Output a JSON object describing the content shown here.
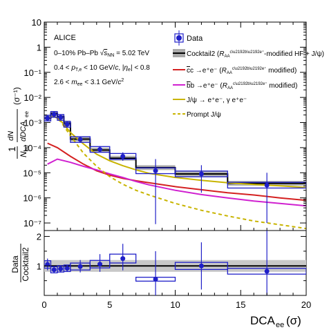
{
  "chart_data": [
    {
      "type": "line",
      "panel": "main",
      "experiment": "ALICE",
      "annotations": [
        "0–10% Pb–Pb √s_NN = 5.02 TeV",
        "0.4 < p_T,e < 10 GeV/c, |η_e| < 0.8",
        "2.6 < m_ee < 3.1 GeV/c²"
      ],
      "xlabel": "DCA_ee (σ)",
      "ylabel": "1/N_ev dN/dDCA_ee (σ⁻¹)",
      "xlim": [
        0,
        20
      ],
      "ylim": [
        5e-08,
        10
      ],
      "yscale": "log",
      "xticks": [
        "0",
        "5",
        "10",
        "15",
        "20"
      ],
      "yticks": [
        "10⁻⁷",
        "10⁻⁶",
        "10⁻⁵",
        "10⁻⁴",
        "10⁻³",
        "10⁻²",
        "10⁻¹",
        "1",
        "10"
      ],
      "legend_position": "top-right",
      "data": {
        "name": "Data",
        "color": "#1f1fc8",
        "points": [
          {
            "x": 0.25,
            "y": 0.0015,
            "xlo": 0,
            "xhi": 0.5,
            "ylo": 0.0012,
            "yhi": 0.0019
          },
          {
            "x": 0.75,
            "y": 0.0021,
            "xlo": 0.5,
            "xhi": 1.0,
            "ylo": 0.0017,
            "yhi": 0.0026
          },
          {
            "x": 1.25,
            "y": 0.0016,
            "xlo": 1.0,
            "xhi": 1.5,
            "ylo": 0.0013,
            "yhi": 0.002
          },
          {
            "x": 1.75,
            "y": 0.00085,
            "xlo": 1.5,
            "xhi": 2.0,
            "ylo": 0.0007,
            "yhi": 0.00105
          },
          {
            "x": 2.75,
            "y": 0.00021,
            "xlo": 2.0,
            "xhi": 3.5,
            "ylo": 0.00017,
            "yhi": 0.00026
          },
          {
            "x": 4.25,
            "y": 8.5e-05,
            "xlo": 3.5,
            "xhi": 5.0,
            "ylo": 6.5e-05,
            "yhi": 0.000115
          },
          {
            "x": 6.0,
            "y": 4.5e-05,
            "xlo": 5.0,
            "xhi": 7.0,
            "ylo": 3e-05,
            "yhi": 6.5e-05
          },
          {
            "x": 8.5,
            "y": 1.2e-05,
            "xlo": 7.0,
            "xhi": 10.0,
            "ylo": 9e-08,
            "yhi": 3.5e-05
          },
          {
            "x": 12.0,
            "y": 9e-06,
            "xlo": 10.0,
            "xhi": 14.0,
            "ylo": 1.6e-06,
            "yhi": 2e-05
          },
          {
            "x": 17.0,
            "y": 3.2e-06,
            "xlo": 14.0,
            "xhi": 20.0,
            "ylo": 1e-07,
            "yhi": 1e-05
          }
        ]
      },
      "series": [
        {
          "name": "Cocktail2 (R_AA^{c→b→e⁺}-modified HF + J/ψ)",
          "style": "band",
          "color": "#000000",
          "band_color": "#aaaaaa",
          "bins": [
            {
              "xlo": 0,
              "xhi": 0.5,
              "y": 0.0015
            },
            {
              "xlo": 0.5,
              "xhi": 1.0,
              "y": 0.0023
            },
            {
              "xlo": 1.0,
              "xhi": 1.5,
              "y": 0.0017
            },
            {
              "xlo": 1.5,
              "xhi": 2.0,
              "y": 0.00095
            },
            {
              "xlo": 2.0,
              "xhi": 3.5,
              "y": 0.00022
            },
            {
              "xlo": 3.5,
              "xhi": 5.0,
              "y": 8e-05
            },
            {
              "xlo": 5.0,
              "xhi": 7.0,
              "y": 3.8e-05
            },
            {
              "xlo": 7.0,
              "xhi": 10.0,
              "y": 1.6e-05
            },
            {
              "xlo": 10.0,
              "xhi": 14.0,
              "y": 9e-06
            },
            {
              "xlo": 14.0,
              "xhi": 20.0,
              "y": 3.8e-06
            }
          ]
        },
        {
          "name": "c̅c →e⁺e⁻ (R_AA^{c→b→e⁺} modified)",
          "style": "solid",
          "color": "#d42020",
          "x": [
            0.25,
            1.0,
            2.0,
            3.0,
            4.0,
            5.0,
            6.0,
            7.0,
            8.0,
            10.0,
            12.0,
            14.0,
            16.0,
            18.0,
            20.0
          ],
          "y": [
            0.00015,
            0.0001,
            4.5e-05,
            2.2e-05,
            1.2e-05,
            8e-06,
            6e-06,
            4.8e-06,
            4e-06,
            2.8e-06,
            2.1e-06,
            1.6e-06,
            1.3e-06,
            1e-06,
            8e-07
          ]
        },
        {
          "name": "b̅b →e⁺e⁻ (R_AA^{c→b→e⁺} modified)",
          "style": "solid",
          "color": "#d020d0",
          "x": [
            0.25,
            1.0,
            2.0,
            3.0,
            4.0,
            5.0,
            6.0,
            7.0,
            8.0,
            10.0,
            12.0,
            14.0,
            16.0,
            18.0,
            20.0
          ],
          "y": [
            2.2e-05,
            3.5e-05,
            2.6e-05,
            1.8e-05,
            1.3e-05,
            9e-06,
            6.5e-06,
            4.5e-06,
            3.3e-06,
            2e-06,
            1.35e-06,
            1e-06,
            7.5e-07,
            6e-07,
            4.8e-07
          ]
        },
        {
          "name": "J/ψ → e⁺e⁻, γ e⁺e⁻",
          "style": "solid",
          "color": "#c8b400",
          "x": [
            0.25,
            0.75,
            1.25,
            2.0,
            3.0,
            4.0,
            5.0,
            6.0,
            7.0,
            8.0,
            10.0,
            12.0,
            14.0,
            16.0,
            18.0,
            20.0
          ],
          "y": [
            0.0015,
            0.0018,
            0.0012,
            0.0004,
            0.00014,
            5.5e-05,
            3e-05,
            1.9e-05,
            1.3e-05,
            9.5e-06,
            6.5e-06,
            5e-06,
            4e-06,
            3.4e-06,
            3e-06,
            2.6e-06
          ]
        },
        {
          "name": "Prompt J/ψ",
          "style": "dashed",
          "color": "#c8b400",
          "x": [
            0.25,
            0.75,
            1.25,
            2.0,
            3.0,
            4.0,
            5.0,
            6.0,
            7.0,
            8.0,
            10.0,
            12.0,
            14.0,
            16.0,
            18.0,
            20.0
          ],
          "y": [
            0.0015,
            0.0018,
            0.0011,
            0.0003,
            6e-05,
            1.8e-05,
            7e-06,
            3.5e-06,
            2e-06,
            1.3e-06,
            6e-07,
            3.2e-07,
            1.9e-07,
            1.2e-07,
            8.5e-08,
            6e-08
          ]
        }
      ]
    },
    {
      "type": "scatter",
      "panel": "ratio",
      "ylabel": "Data / Cocktail2",
      "xlabel": "DCA_ee (σ)",
      "xlim": [
        0,
        20
      ],
      "ylim": [
        0,
        2.2
      ],
      "xticks": [
        "0",
        "5",
        "10",
        "15",
        "20"
      ],
      "yticks": [
        "1",
        "2"
      ],
      "reference_line": 1,
      "reference_band": [
        0.8,
        1.2
      ],
      "points": [
        {
          "x": 0.25,
          "y": 1.05,
          "xlo": 0,
          "xhi": 0.5,
          "ylo": 0.85,
          "yhi": 1.25
        },
        {
          "x": 0.75,
          "y": 0.87,
          "xlo": 0.5,
          "xhi": 1.0,
          "ylo": 0.75,
          "yhi": 0.99
        },
        {
          "x": 1.25,
          "y": 0.9,
          "xlo": 1.0,
          "xhi": 1.5,
          "ylo": 0.78,
          "yhi": 1.02
        },
        {
          "x": 1.75,
          "y": 0.92,
          "xlo": 1.5,
          "xhi": 2.0,
          "ylo": 0.8,
          "yhi": 1.04
        },
        {
          "x": 2.75,
          "y": 0.98,
          "xlo": 2.0,
          "xhi": 3.5,
          "ylo": 0.78,
          "yhi": 1.2
        },
        {
          "x": 4.25,
          "y": 1.06,
          "xlo": 3.5,
          "xhi": 5.0,
          "ylo": 0.8,
          "yhi": 1.4
        },
        {
          "x": 6.0,
          "y": 1.25,
          "xlo": 5.0,
          "xhi": 7.0,
          "ylo": 0.85,
          "yhi": 1.75
        },
        {
          "x": 8.5,
          "y": 0.55,
          "xlo": 7.0,
          "xhi": 10.0,
          "ylo": 0.0,
          "yhi": 1.5
        },
        {
          "x": 12.0,
          "y": 1.0,
          "xlo": 10.0,
          "xhi": 14.0,
          "ylo": 0.2,
          "yhi": 1.8
        },
        {
          "x": 17.0,
          "y": 0.82,
          "xlo": 14.0,
          "xhi": 20.0,
          "ylo": 0.0,
          "yhi": 2.2
        }
      ]
    }
  ]
}
